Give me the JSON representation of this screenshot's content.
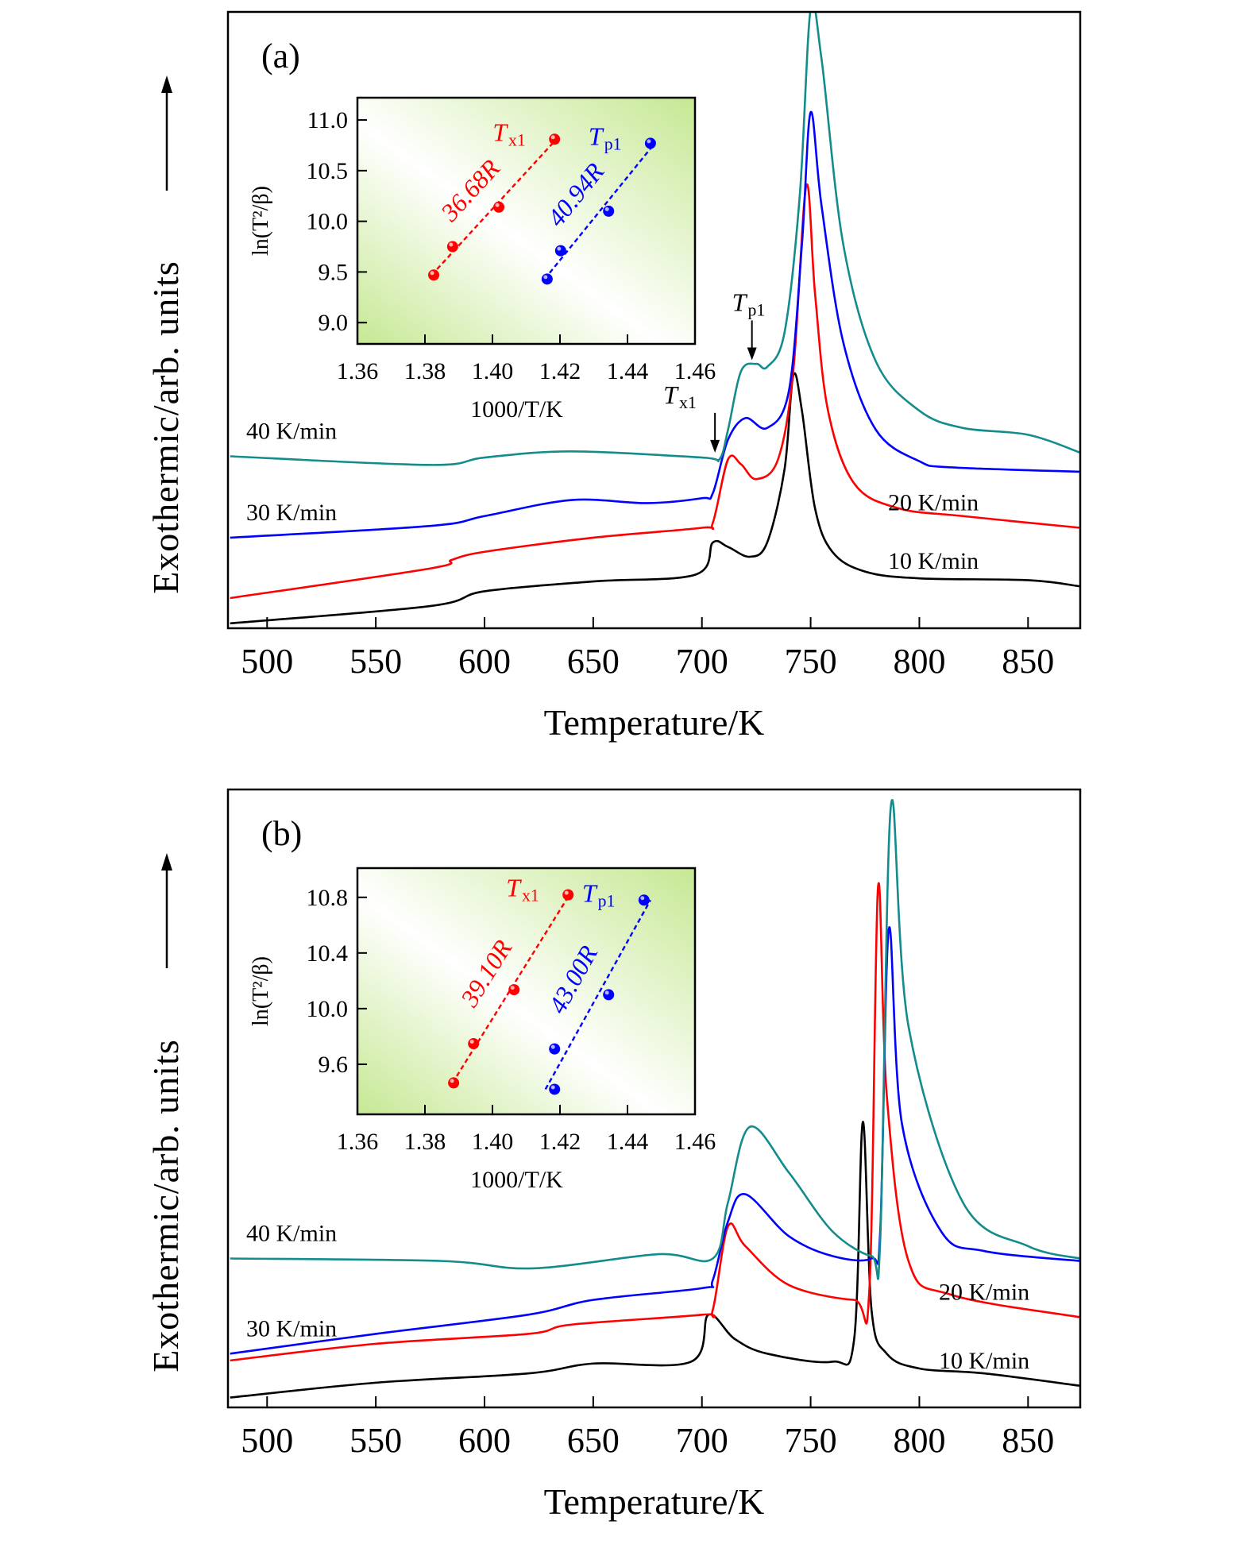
{
  "chart_data": [
    {
      "panel_label": "(a)",
      "type": "line",
      "xlabel": "Temperature/K",
      "ylabel": "Exothermic/arb. units",
      "xlim": [
        482,
        874
      ],
      "xticks": [
        500,
        550,
        600,
        650,
        700,
        750,
        800,
        850
      ],
      "ylim": [
        0,
        100
      ],
      "series": [
        {
          "name": "10 K/min",
          "color": "#000000",
          "x": [
            483,
            575,
            600,
            650,
            697,
            705,
            712,
            722,
            730,
            738,
            742,
            746,
            752,
            760,
            775,
            800,
            850,
            874
          ],
          "y": [
            0.8,
            3.6,
            6.0,
            7.6,
            8.7,
            13.9,
            13.2,
            11.6,
            13.9,
            25.8,
            41.0,
            35.3,
            19.5,
            12.4,
            9.2,
            8.1,
            7.8,
            6.8
          ]
        },
        {
          "name": "20 K/min",
          "color": "#ff0000",
          "x": [
            483,
            575,
            585,
            600,
            650,
            700,
            705,
            712,
            718,
            725,
            735,
            742,
            748,
            752,
            758,
            770,
            790,
            820,
            874
          ],
          "y": [
            4.9,
            9.7,
            11.1,
            12.4,
            14.7,
            16.3,
            17.1,
            27.4,
            26.6,
            24.2,
            27.4,
            41.7,
            71.8,
            54.4,
            35.3,
            23.5,
            19.5,
            18.2,
            16.3
          ]
        },
        {
          "name": "30 K/min",
          "color": "#0000ff",
          "x": [
            483,
            575,
            600,
            640,
            675,
            700,
            705,
            712,
            720,
            730,
            740,
            746,
            750,
            755,
            765,
            780,
            800,
            815,
            874
          ],
          "y": [
            14.7,
            16.6,
            18.2,
            20.8,
            20.3,
            21.1,
            21.9,
            30.6,
            34.1,
            32.5,
            38.5,
            62.3,
            83.7,
            68.6,
            46.4,
            32.2,
            27.1,
            26.1,
            25.4
          ]
        },
        {
          "name": "40 K/min",
          "color": "#148c8c",
          "x": [
            483,
            575,
            600,
            640,
            700,
            708,
            712,
            718,
            725,
            730,
            738,
            745,
            750,
            755,
            765,
            780,
            800,
            820,
            850,
            874
          ],
          "y": [
            27.9,
            26.5,
            27.7,
            28.7,
            27.7,
            27.4,
            32.2,
            41.7,
            42.9,
            42.4,
            48.0,
            70.2,
            100.5,
            92.4,
            62.3,
            43.3,
            35.3,
            32.5,
            31.4,
            28.5
          ]
        }
      ],
      "annotations": [
        {
          "symbol": "T",
          "sub": "p1",
          "x": 723,
          "arrow_tip_y": 43.5
        },
        {
          "symbol": "T",
          "sub": "x1",
          "x": 706,
          "arrow_tip_y": 28.5
        }
      ],
      "inset": {
        "type": "scatter",
        "xlabel": "1000/T/K",
        "ylabel": "ln(T²/β)",
        "xlim": [
          1.36,
          1.46
        ],
        "xticks": [
          "1.36",
          "1.38",
          "1.40",
          "1.42",
          "1.44",
          "1.46"
        ],
        "ylim": [
          8.79,
          11.22
        ],
        "yticks": [
          "9.0",
          "9.5",
          "10.0",
          "10.5",
          "11.0"
        ],
        "background_colors": [
          "#c6e893",
          "#ffffff"
        ],
        "series": [
          {
            "symbol": "T",
            "sub": "x1",
            "slope_label": "36.68R",
            "color": "#ff0000",
            "x": [
              1.3826,
              1.3882,
              1.4019,
              1.4184
            ],
            "y": [
              9.47,
              9.75,
              10.14,
              10.81
            ]
          },
          {
            "symbol": "T",
            "sub": "p1",
            "slope_label": "40.94R",
            "color": "#0000ff",
            "x": [
              1.4162,
              1.4202,
              1.4344,
              1.4468
            ],
            "y": [
              9.43,
              9.71,
              10.1,
              10.77
            ]
          }
        ]
      }
    },
    {
      "panel_label": "(b)",
      "type": "line",
      "xlabel": "Temperature/K",
      "ylabel": "Exothermic/arb. units",
      "xlim": [
        482,
        874
      ],
      "xticks": [
        500,
        550,
        600,
        650,
        700,
        750,
        800,
        850
      ],
      "ylim": [
        0,
        100
      ],
      "series": [
        {
          "name": "10 K/min",
          "color": "#000000",
          "x": [
            483,
            550,
            620,
            650,
            695,
            703,
            715,
            730,
            760,
            770,
            774,
            778,
            785,
            800,
            830,
            874
          ],
          "y": [
            1.6,
            4.0,
            5.5,
            7.1,
            7.4,
            15.0,
            11.1,
            8.7,
            7.4,
            11.0,
            46.2,
            15.8,
            8.7,
            6.3,
            5.5,
            3.5
          ]
        },
        {
          "name": "20 K/min",
          "color": "#ff0000",
          "x": [
            483,
            550,
            620,
            640,
            700,
            705,
            712,
            720,
            740,
            770,
            777,
            781,
            785,
            795,
            815,
            874
          ],
          "y": [
            7.6,
            10.3,
            11.9,
            13.4,
            15.0,
            15.8,
            29.3,
            26.1,
            19.8,
            17.4,
            19.0,
            84.2,
            50.6,
            23.7,
            18.2,
            14.6
          ]
        },
        {
          "name": "30 K/min",
          "color": "#0000ff",
          "x": [
            483,
            550,
            620,
            650,
            700,
            705,
            712,
            720,
            740,
            760,
            778,
            782,
            786,
            792,
            810,
            830,
            874
          ],
          "y": [
            8.7,
            11.9,
            15.0,
            17.4,
            19.3,
            20.6,
            30.1,
            34.5,
            27.7,
            24.5,
            24.1,
            28.5,
            77.5,
            45.9,
            28.5,
            25.3,
            23.7
          ]
        },
        {
          "name": "40 K/min",
          "color": "#148c8c",
          "x": [
            483,
            580,
            622,
            680,
            705,
            712,
            722,
            740,
            760,
            778,
            782,
            787,
            795,
            820,
            850,
            874
          ],
          "y": [
            24.1,
            23.7,
            22.5,
            24.8,
            24.1,
            33.2,
            45.4,
            38.0,
            28.5,
            24.5,
            27.0,
            97.6,
            61.7,
            33.2,
            26.1,
            24.1
          ]
        }
      ],
      "annotations": [],
      "inset": {
        "type": "scatter",
        "xlabel": "1000/T/K",
        "ylabel": "ln(T²/β)",
        "xlim": [
          1.36,
          1.46
        ],
        "xticks": [
          "1.36",
          "1.38",
          "1.40",
          "1.42",
          "1.44",
          "1.46"
        ],
        "ylim": [
          9.24,
          11.01
        ],
        "yticks": [
          "9.6",
          "10.0",
          "10.4",
          "10.8"
        ],
        "background_colors": [
          "#c6e893",
          "#ffffff"
        ],
        "series": [
          {
            "symbol": "T",
            "sub": "x1",
            "slope_label": "39.10R",
            "color": "#ff0000",
            "x": [
              1.3885,
              1.3944,
              1.4064,
              1.4224
            ],
            "y": [
              9.466,
              9.748,
              10.136,
              10.818
            ]
          },
          {
            "symbol": "T",
            "sub": "p1",
            "slope_label": "43.00R",
            "color": "#0000ff",
            "x": [
              1.4184,
              1.4184,
              1.4344,
              1.4449
            ],
            "y": [
              9.42,
              9.71,
              10.1,
              10.78
            ]
          }
        ]
      }
    }
  ]
}
